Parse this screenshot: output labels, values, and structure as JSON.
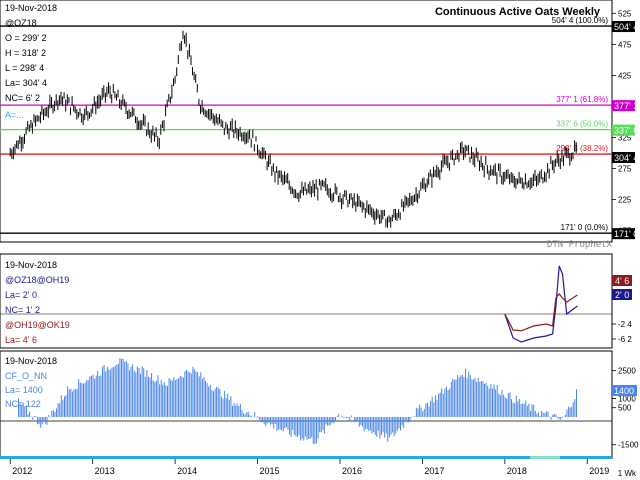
{
  "title": "Continuous Active Oats Weekly",
  "top_panel": {
    "date": "19-Nov-2018",
    "symbol": "@OZ18",
    "ohlc": [
      "O = 299' 2",
      "H = 318' 2",
      "L = 298' 4",
      "La= 304' 4",
      "NC= 6' 2"
    ],
    "ma_label": "A=...",
    "yticks": [
      "525",
      "475",
      "425",
      "375",
      "325",
      "275",
      "225",
      "175"
    ],
    "levels": [
      {
        "label": "504' 4 (100.0%)",
        "value": 504.5,
        "color": "#000000",
        "tag": "504' 4"
      },
      {
        "label": "377' 1 (61.8%)",
        "value": 377.125,
        "color": "#cc00cc",
        "tag": "377' 1"
      },
      {
        "label": "337' 6 (50.0%)",
        "value": 337.75,
        "color": "#55dd55",
        "tag": "337' 6"
      },
      {
        "label": "298' 3 (38.2%)",
        "value": 298.375,
        "color": "#dd2222",
        "tag": ""
      },
      {
        "label": "171' 0 (0.0%)",
        "value": 171,
        "color": "#000000",
        "tag": "171' 0"
      }
    ],
    "last_tag": "304' 4",
    "watermark": "DTN ProphetX"
  },
  "mid_panel": {
    "date": "19-Nov-2018",
    "spread1": "@OZ18@OH19",
    "spread1_last": "La= 2' 0",
    "nc1": "NC= 1' 2",
    "spread2": "@OH19@OK19",
    "spread2_last": "La= 4' 6",
    "yticks": [
      "-2 4",
      "-6 2"
    ],
    "tag_red": "4' 6",
    "tag_blue": "2' 0"
  },
  "bottom_panel": {
    "date": "19-Nov-2018",
    "symbol": "CF_O_NN",
    "last": "La= 1400",
    "nc": "NC= 122",
    "yticks": [
      "2500",
      "1000",
      "500",
      "-1500"
    ],
    "tag": "1400"
  },
  "x_axis": {
    "labels": [
      "2012",
      "2013",
      "2014",
      "2015",
      "2016",
      "2017",
      "2018",
      "2019"
    ],
    "period": "1 Wk"
  },
  "colors": {
    "price": "#000000",
    "spread1": "#1a1a8c",
    "spread2": "#8b1a1a",
    "bars": "#4a86e8",
    "ma": "#44aaff",
    "fib": [
      "#000000",
      "#cc00cc",
      "#55dd55",
      "#dd2222",
      "#000000"
    ]
  },
  "chart_data": [
    {
      "type": "line",
      "title": "Continuous Active Oats Weekly",
      "series": [],
      "x": [
        2012.0,
        2012.3,
        2012.6,
        2012.9,
        2013.2,
        2013.5,
        2013.8,
        2014.0,
        2014.1,
        2014.3,
        2014.6,
        2014.9,
        2015.2,
        2015.5,
        2015.8,
        2016.1,
        2016.4,
        2016.6,
        2016.9,
        2017.2,
        2017.5,
        2017.8,
        2018.1,
        2018.4,
        2018.6,
        2018.88
      ],
      "values": [
        300,
        350,
        390,
        360,
        400,
        360,
        320,
        420,
        500,
        380,
        340,
        330,
        270,
        235,
        245,
        225,
        205,
        190,
        230,
        275,
        305,
        275,
        255,
        255,
        285,
        305
      ],
      "ylim": [
        160,
        540
      ]
    },
    {
      "type": "line",
      "title": "",
      "series": [
        {
          "name": "@OZ18@OH19",
          "x": [
            2018.0,
            2018.1,
            2018.2,
            2018.35,
            2018.5,
            2018.58,
            2018.62,
            2018.66,
            2018.7,
            2018.75,
            2018.88
          ],
          "values": [
            0,
            -6,
            -7,
            -6,
            -5.5,
            -5,
            2,
            12,
            10,
            0,
            2
          ]
        },
        {
          "name": "@OH19@OK19",
          "x": [
            2018.0,
            2018.1,
            2018.2,
            2018.35,
            2018.5,
            2018.58,
            2018.62,
            2018.66,
            2018.7,
            2018.75,
            2018.88
          ],
          "values": [
            0,
            -4,
            -4.2,
            -3,
            -2.5,
            -3,
            4,
            5,
            4,
            3,
            4.75
          ]
        }
      ],
      "ylim": [
        -8,
        14
      ]
    },
    {
      "type": "bar",
      "title": "",
      "series": [
        {
          "name": "CF_O_NN",
          "x": [
            2012.1,
            2012.4,
            2012.7,
            2013.0,
            2013.3,
            2013.6,
            2013.9,
            2014.2,
            2014.5,
            2014.8,
            2015.1,
            2015.4,
            2015.7,
            2016.0,
            2016.3,
            2016.6,
            2016.9,
            2017.2,
            2017.5,
            2017.8,
            2018.1,
            2018.4,
            2018.7,
            2018.88
          ],
          "values": [
            800,
            -500,
            1500,
            2200,
            3000,
            2500,
            1800,
            2600,
            1500,
            500,
            -300,
            -900,
            -1300,
            200,
            -600,
            -1200,
            200,
            1200,
            2400,
            1800,
            1000,
            300,
            -200,
            1400
          ]
        }
      ],
      "ylim": [
        -2000,
        3400
      ]
    }
  ]
}
